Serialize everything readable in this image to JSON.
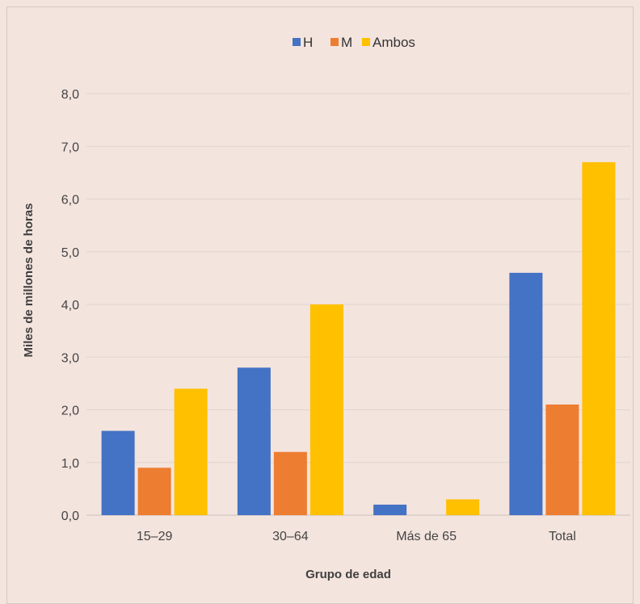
{
  "chart_data": {
    "type": "bar",
    "categories": [
      "15–29",
      "30–64",
      "Más de 65",
      "Total"
    ],
    "series": [
      {
        "name": "H",
        "values": [
          1.6,
          2.8,
          0.2,
          4.6
        ],
        "color": "#4472c4"
      },
      {
        "name": "M",
        "values": [
          0.9,
          1.2,
          0.0,
          2.1
        ],
        "color": "#ed7d31"
      },
      {
        "name": "Ambos",
        "values": [
          2.4,
          4.0,
          0.3,
          6.7
        ],
        "color": "#ffc000"
      }
    ],
    "yticks": [
      "0,0",
      "1,0",
      "2,0",
      "3,0",
      "4,0",
      "5,0",
      "6,0",
      "7,0",
      "8,0"
    ],
    "ylim": [
      0,
      8
    ],
    "xlabel": "Grupo de edad",
    "ylabel": "Miles de millones de horas",
    "grid": true,
    "legend_position": "top"
  }
}
